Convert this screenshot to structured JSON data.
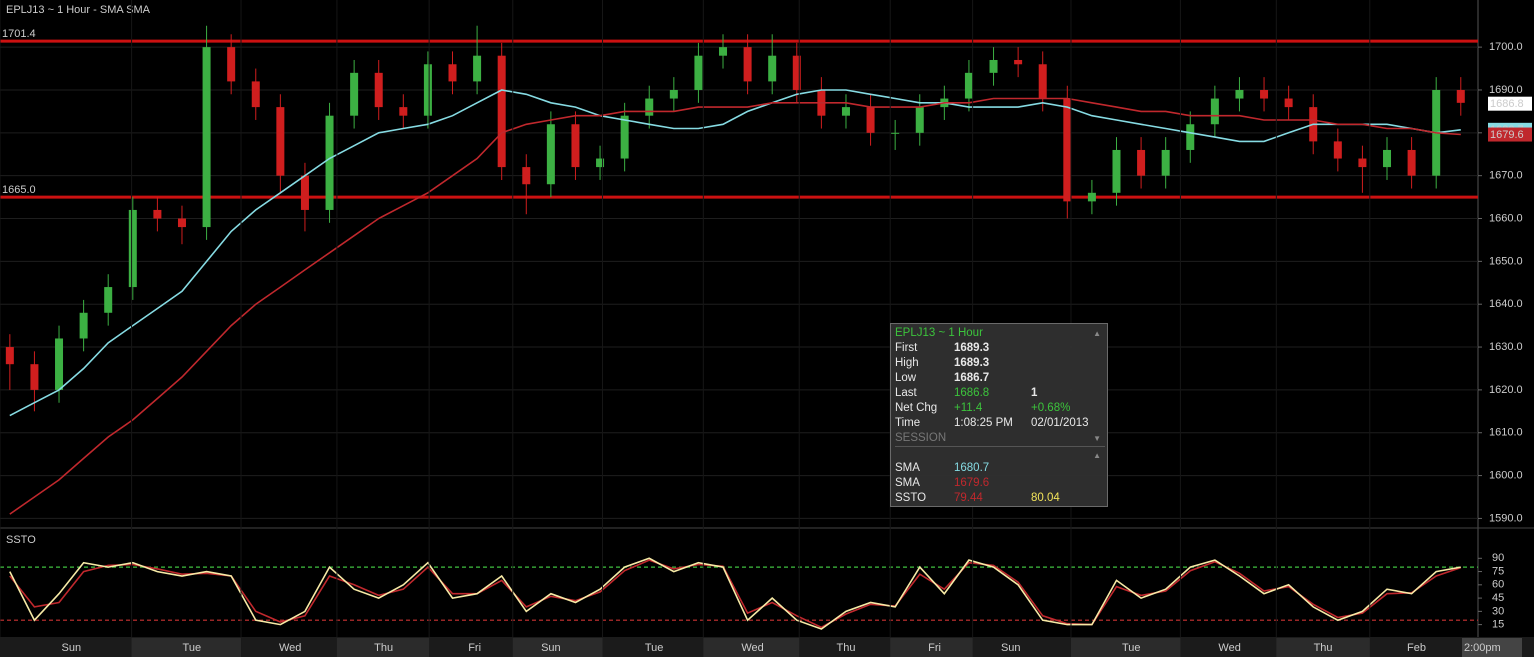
{
  "chart_data": [
    {
      "type": "candlestick",
      "title": "EPLJ13 ~ 1 Hour  -  SMA SMA",
      "open": [
        1630,
        1626,
        1620,
        1632,
        1638,
        1644,
        1662,
        1660,
        1658,
        1700,
        1692,
        1686,
        1670,
        1662,
        1684,
        1694,
        1686,
        1684,
        1696,
        1692,
        1698,
        1672,
        1668,
        1682,
        1672,
        1674,
        1684,
        1688,
        1690,
        1698,
        1700,
        1692,
        1698,
        1690,
        1684,
        1686,
        1680,
        1680,
        1686,
        1688,
        1694,
        1697,
        1696,
        1688,
        1664,
        1666,
        1676,
        1670,
        1676,
        1682,
        1688,
        1690,
        1688,
        1686,
        1678,
        1674,
        1672,
        1676,
        1670,
        1690
      ],
      "high": [
        1633,
        1629,
        1635,
        1641,
        1647,
        1665,
        1665,
        1663,
        1705,
        1703,
        1695,
        1689,
        1673,
        1687,
        1697,
        1697,
        1689,
        1699,
        1699,
        1705,
        1701,
        1675,
        1685,
        1685,
        1677,
        1687,
        1691,
        1693,
        1701,
        1703,
        1703,
        1703,
        1701,
        1693,
        1689,
        1689,
        1683,
        1689,
        1691,
        1697,
        1700,
        1700,
        1699,
        1691,
        1669,
        1679,
        1679,
        1679,
        1685,
        1691,
        1693,
        1693,
        1691,
        1689,
        1681,
        1677,
        1679,
        1679,
        1693,
        1693
      ],
      "low": [
        1620,
        1615,
        1617,
        1629,
        1635,
        1641,
        1657,
        1654,
        1655,
        1689,
        1683,
        1666,
        1657,
        1659,
        1681,
        1683,
        1681,
        1681,
        1689,
        1689,
        1669,
        1661,
        1665,
        1669,
        1669,
        1671,
        1681,
        1685,
        1687,
        1695,
        1689,
        1689,
        1687,
        1681,
        1681,
        1677,
        1676,
        1677,
        1683,
        1685,
        1691,
        1693,
        1685,
        1660,
        1661,
        1663,
        1667,
        1667,
        1673,
        1679,
        1685,
        1685,
        1683,
        1675,
        1671,
        1666,
        1669,
        1667,
        1667,
        1684
      ],
      "close": [
        1626,
        1620,
        1632,
        1638,
        1644,
        1662,
        1660,
        1658,
        1700,
        1692,
        1686,
        1670,
        1662,
        1684,
        1694,
        1686,
        1684,
        1696,
        1692,
        1698,
        1672,
        1668,
        1682,
        1672,
        1674,
        1684,
        1688,
        1690,
        1698,
        1700,
        1692,
        1698,
        1690,
        1684,
        1686,
        1680,
        1680,
        1686,
        1688,
        1694,
        1697,
        1696,
        1688,
        1664,
        1666,
        1676,
        1670,
        1676,
        1682,
        1688,
        1690,
        1688,
        1686,
        1678,
        1674,
        1672,
        1676,
        1670,
        1690,
        1687
      ],
      "up_color": "#3cb043",
      "down_color": "#d01e1e",
      "lines": [
        {
          "color": "#86dbe3",
          "values": [
            1614,
            1617,
            1620,
            1625,
            1631,
            1635,
            1639,
            1643,
            1650,
            1657,
            1662,
            1666,
            1670,
            1674,
            1677,
            1680,
            1681,
            1682,
            1684,
            1687,
            1690,
            1689,
            1687,
            1686,
            1684,
            1683,
            1682,
            1681,
            1681,
            1682,
            1685,
            1687,
            1689,
            1690,
            1690,
            1689,
            1688,
            1687,
            1687,
            1686,
            1686,
            1686,
            1687,
            1686,
            1684,
            1683,
            1682,
            1681,
            1680,
            1679,
            1678,
            1678,
            1680,
            1682,
            1682,
            1682,
            1682,
            1681,
            1680,
            1680.7
          ]
        },
        {
          "color": "#c0282d",
          "values": [
            1591,
            1595,
            1599,
            1604,
            1609,
            1613,
            1618,
            1623,
            1629,
            1635,
            1640,
            1644,
            1648,
            1652,
            1656,
            1660,
            1663,
            1666,
            1670,
            1674,
            1680,
            1682,
            1683,
            1684,
            1684,
            1685,
            1685,
            1685,
            1686,
            1686,
            1686,
            1687,
            1687,
            1687,
            1687,
            1686,
            1686,
            1686,
            1687,
            1687,
            1688,
            1688,
            1688,
            1688,
            1687,
            1686,
            1685,
            1685,
            1684,
            1684,
            1684,
            1683,
            1683,
            1683,
            1682,
            1682,
            1681,
            1681,
            1680,
            1679.6
          ]
        }
      ],
      "levels": [
        {
          "value": 1701.4,
          "label": "1701.4",
          "color": "#cc1111"
        },
        {
          "value": 1665,
          "label": "1665.0",
          "color": "#cc1111"
        }
      ],
      "price_tags": [
        {
          "value": 1686.8,
          "color": "#ffffff"
        },
        {
          "value": 1680.7,
          "color": "#86dbe3"
        },
        {
          "value": 1679.6,
          "color": "#c0282d"
        }
      ],
      "xlim": [
        -0.4,
        59.7
      ],
      "ylim": [
        1588,
        1711
      ],
      "yticks": [
        {
          "value": 1590,
          "label": "1590.0"
        },
        {
          "value": 1600,
          "label": "1600.0"
        },
        {
          "value": 1610,
          "label": "1610.0"
        },
        {
          "value": 1620,
          "label": "1620.0"
        },
        {
          "value": 1630,
          "label": "1630.0"
        },
        {
          "value": 1640,
          "label": "1640.0"
        },
        {
          "value": 1650,
          "label": "1650.0"
        },
        {
          "value": 1660,
          "label": "1660.0"
        },
        {
          "value": 1670,
          "label": "1670.0"
        },
        {
          "value": 1680,
          "label": "1680.0"
        },
        {
          "value": 1690,
          "label": "1690.0"
        },
        {
          "value": 1700,
          "label": "1700.0"
        }
      ],
      "grid": true,
      "info_box": {
        "title": "EPLJ13 ~ 1 Hour",
        "rows": [
          [
            "First",
            "1689.3"
          ],
          [
            "High",
            "1689.3"
          ],
          [
            "Low",
            "1686.7"
          ],
          [
            "Last",
            "1686.8",
            "1"
          ],
          [
            "Net Chg",
            "+11.4",
            "+0.68%"
          ],
          [
            "Time",
            "1:08:25 PM",
            "02/01/2013"
          ]
        ],
        "section": "SESSION",
        "study_rows": [
          [
            "SMA",
            "1680.7"
          ],
          [
            "SMA",
            "1679.6"
          ],
          [
            "SSTO",
            "79.44",
            "80.04"
          ]
        ]
      }
    },
    {
      "type": "line",
      "title": "SSTO",
      "series": [
        {
          "color": "#c0282d",
          "values": [
            70,
            35,
            40,
            75,
            82,
            83,
            78,
            72,
            73,
            70,
            30,
            18,
            25,
            70,
            60,
            48,
            55,
            80,
            50,
            50,
            65,
            35,
            47,
            42,
            52,
            76,
            88,
            78,
            83,
            81,
            28,
            40,
            25,
            12,
            27,
            38,
            36,
            72,
            55,
            85,
            82,
            63,
            25,
            16,
            15,
            58,
            48,
            53,
            76,
            86,
            73,
            53,
            58,
            38,
            23,
            28,
            50,
            51,
            70,
            79.44
          ]
        },
        {
          "color": "#f7eaa6",
          "values": [
            75,
            20,
            50,
            85,
            80,
            85,
            75,
            70,
            75,
            70,
            20,
            15,
            30,
            80,
            55,
            45,
            60,
            85,
            45,
            50,
            70,
            30,
            50,
            40,
            55,
            80,
            90,
            75,
            85,
            80,
            20,
            45,
            20,
            10,
            30,
            40,
            35,
            80,
            50,
            88,
            80,
            60,
            20,
            15,
            15,
            65,
            45,
            55,
            80,
            88,
            70,
            50,
            60,
            35,
            20,
            30,
            55,
            50,
            75,
            80.04
          ]
        }
      ],
      "levels": [
        {
          "value": 80,
          "color": "#3fbf3f"
        },
        {
          "value": 20,
          "color": "#cc3333"
        }
      ],
      "xlim": [
        -0.4,
        59.7
      ],
      "ylim": [
        1,
        122
      ],
      "yticks": [
        15,
        30,
        45,
        60,
        75,
        90
      ],
      "xticks": [
        {
          "value": 2.5,
          "label": "Sun"
        },
        {
          "value": 7.4,
          "label": "Tue"
        },
        {
          "value": 11.4,
          "label": "Wed"
        },
        {
          "value": 15.2,
          "label": "Thu"
        },
        {
          "value": 18.9,
          "label": "Fri"
        },
        {
          "value": 22.0,
          "label": "Sun"
        },
        {
          "value": 26.2,
          "label": "Tue"
        },
        {
          "value": 30.2,
          "label": "Wed"
        },
        {
          "value": 34.0,
          "label": "Thu"
        },
        {
          "value": 37.6,
          "label": "Fri"
        },
        {
          "value": 40.7,
          "label": "Sun"
        },
        {
          "value": 45.6,
          "label": "Tue"
        },
        {
          "value": 49.6,
          "label": "Wed"
        },
        {
          "value": 53.4,
          "label": "Thu"
        },
        {
          "value": 57.2,
          "label": "Feb"
        }
      ],
      "cursor_label": "2:00pm"
    }
  ]
}
